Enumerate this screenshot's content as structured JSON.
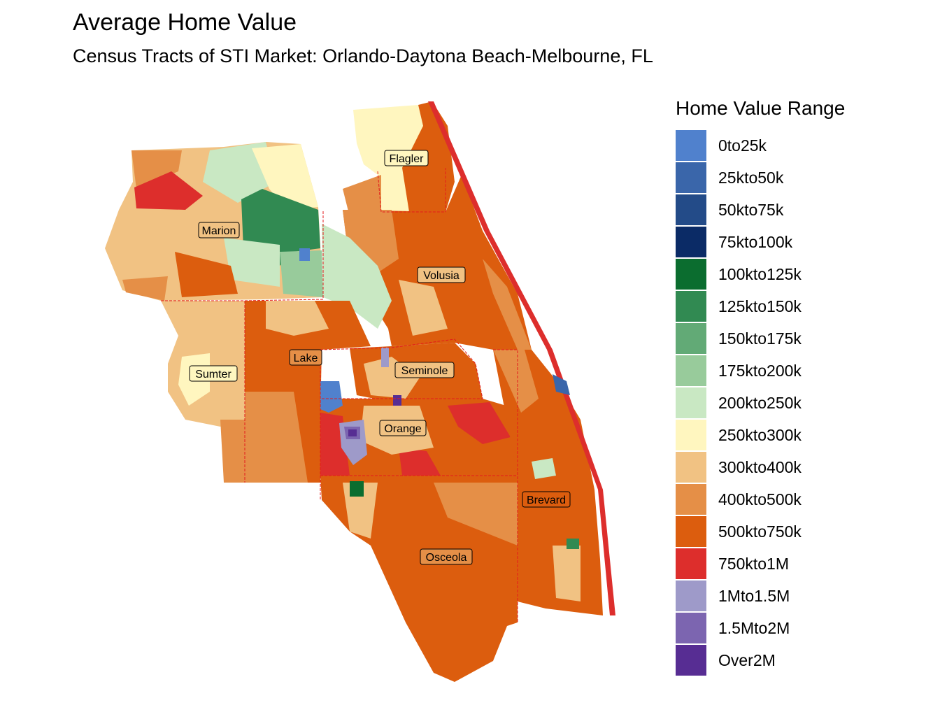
{
  "title": "Average Home Value",
  "subtitle": "Census Tracts of STI Market: Orlando-Daytona Beach-Melbourne, FL",
  "legend": {
    "title": "Home Value Range",
    "items": [
      {
        "label": "0to25k",
        "color": "#5081cd"
      },
      {
        "label": "25kto50k",
        "color": "#3a66aa"
      },
      {
        "label": "50kto75k",
        "color": "#234b88"
      },
      {
        "label": "75kto100k",
        "color": "#0b2b66"
      },
      {
        "label": "100kto125k",
        "color": "#0b6d2f"
      },
      {
        "label": "125kto150k",
        "color": "#318a52"
      },
      {
        "label": "150kto175k",
        "color": "#62aa76"
      },
      {
        "label": "175kto200k",
        "color": "#98cb9b"
      },
      {
        "label": "200kto250k",
        "color": "#c9e8c3"
      },
      {
        "label": "250kto300k",
        "color": "#fff6bf"
      },
      {
        "label": "300kto400k",
        "color": "#f1c283"
      },
      {
        "label": "400kto500k",
        "color": "#e58f47"
      },
      {
        "label": "500kto750k",
        "color": "#dc5d0e"
      },
      {
        "label": "750kto1M",
        "color": "#dd2e2c"
      },
      {
        "label": "1Mto1.5M",
        "color": "#9e9ac9"
      },
      {
        "label": "1.5Mto2M",
        "color": "#7c65b0"
      },
      {
        "label": "Over2M",
        "color": "#572d93"
      }
    ]
  },
  "counties": [
    "Flagler",
    "Marion",
    "Volusia",
    "Lake",
    "Seminole",
    "Sumter",
    "Orange",
    "Brevard",
    "Osceola"
  ],
  "border_color": "#e31a1c"
}
